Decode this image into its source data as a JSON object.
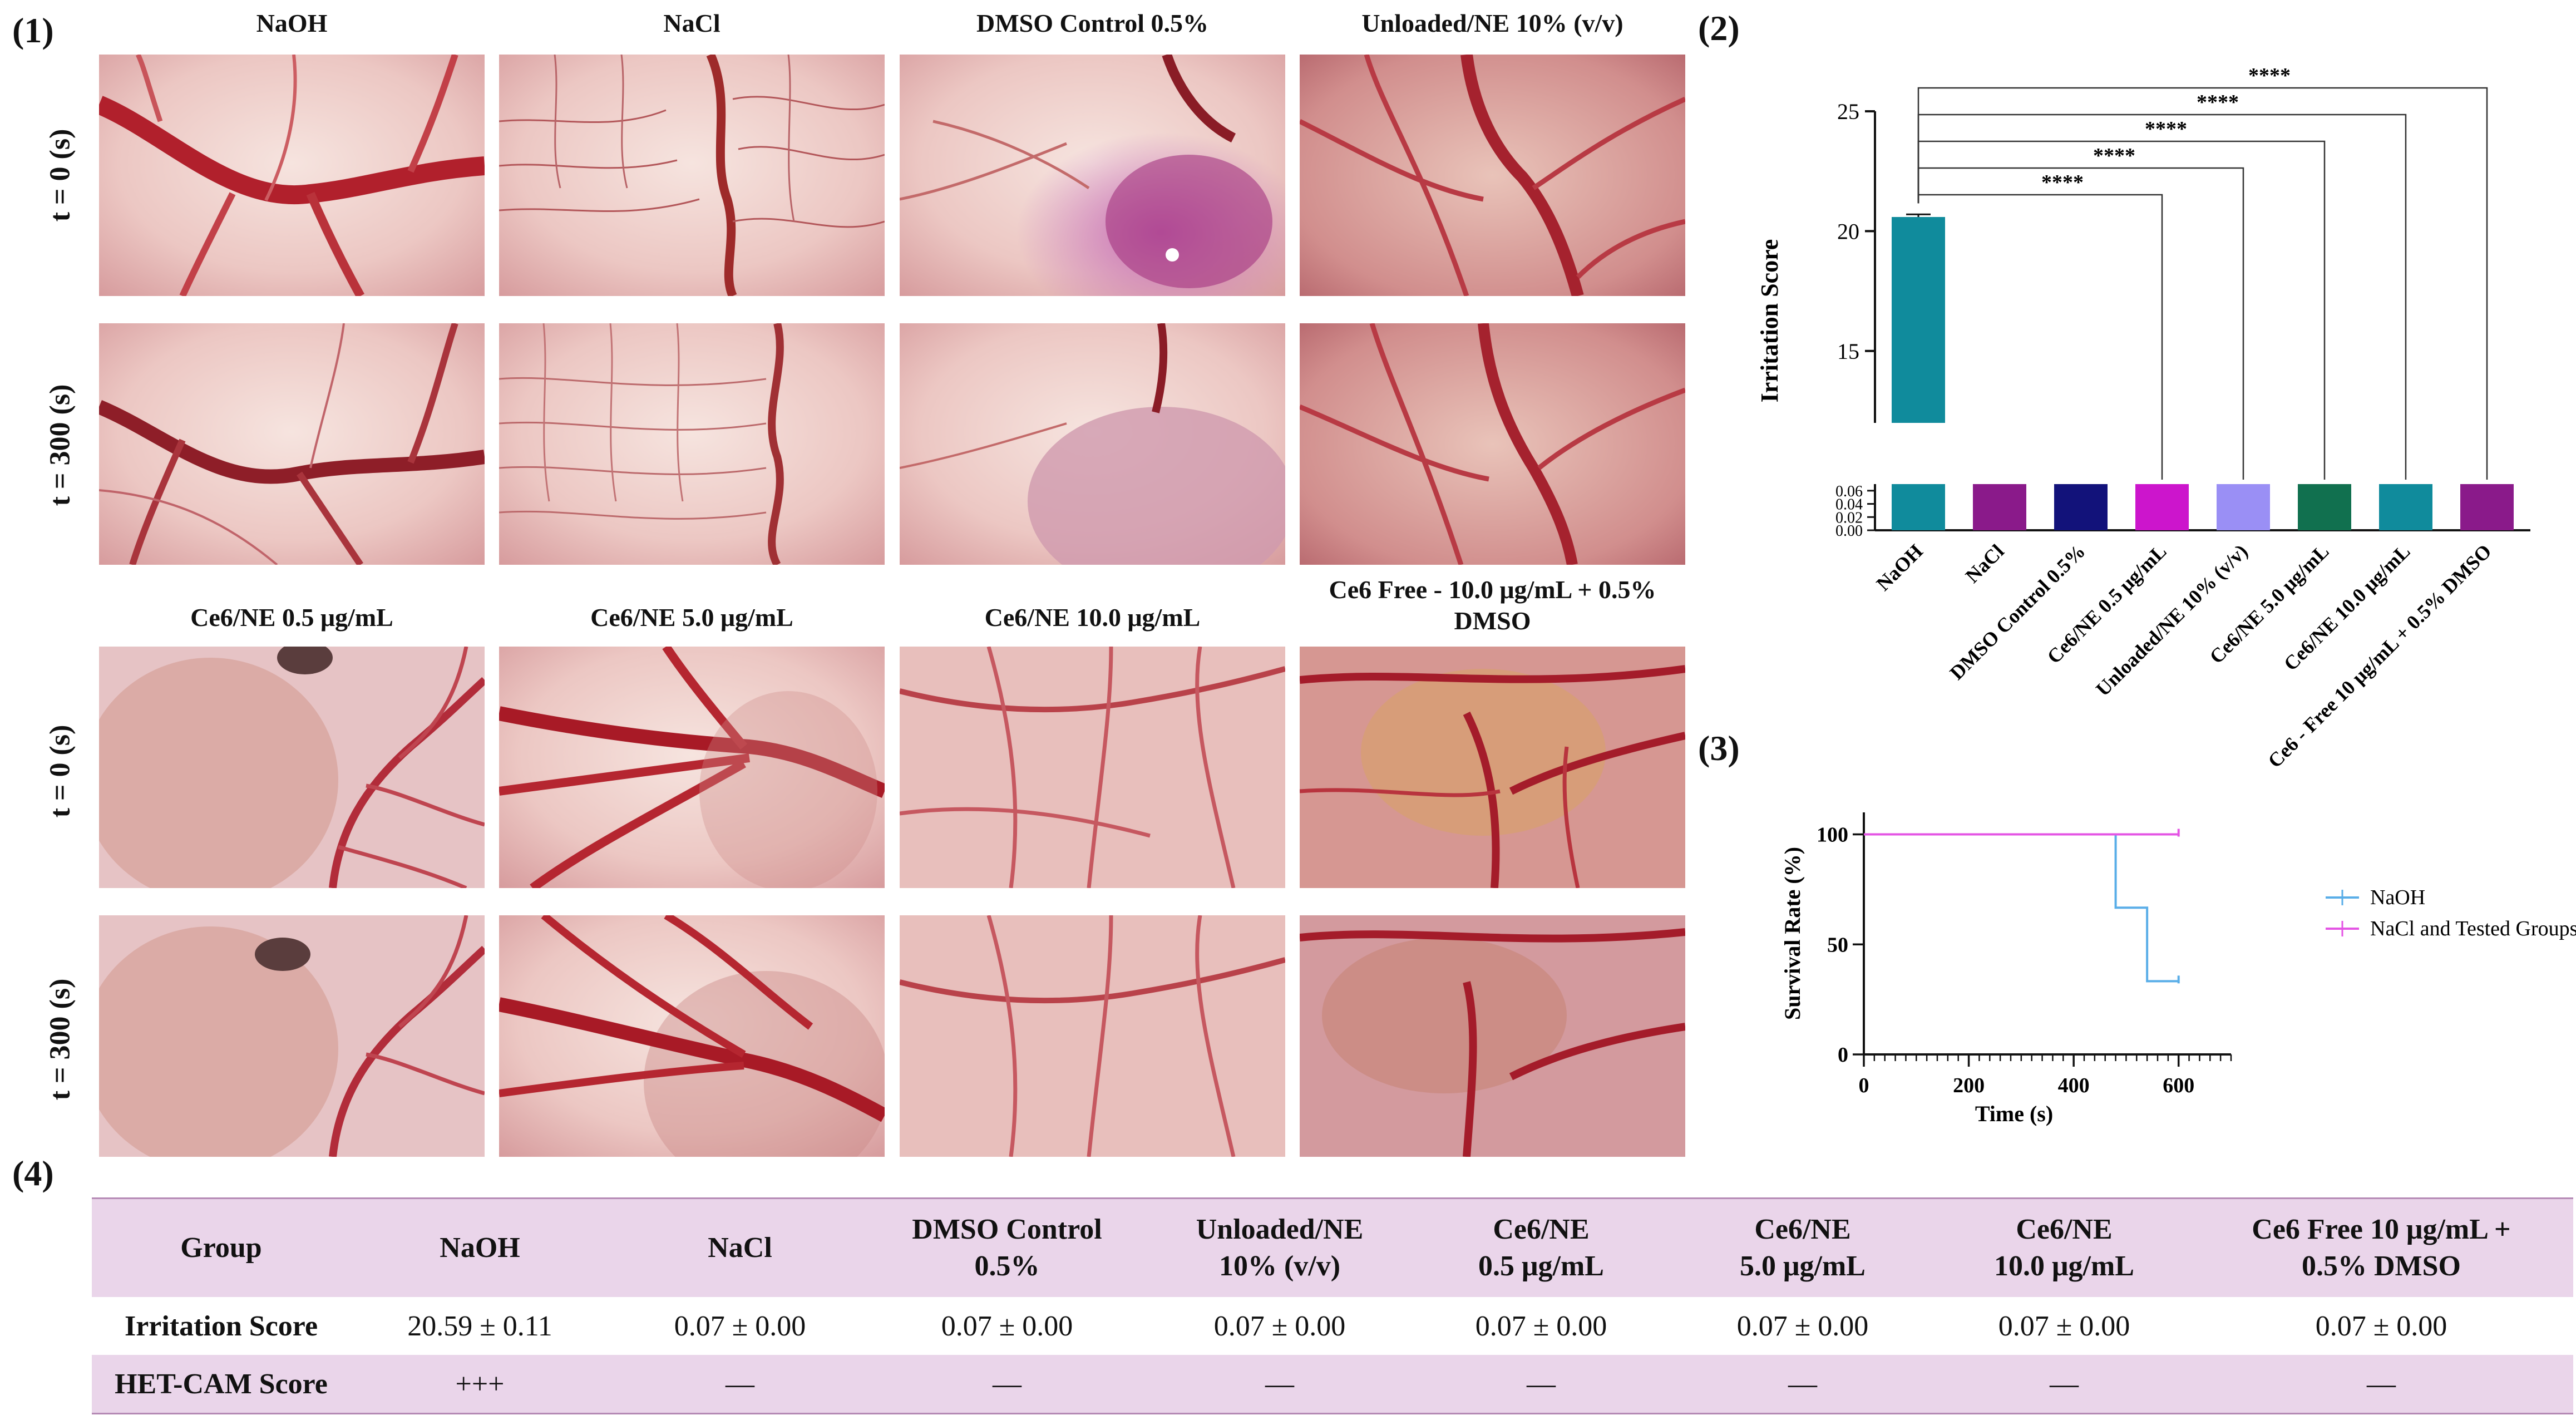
{
  "panels": {
    "p1": "(1)",
    "p2": "(2)",
    "p3": "(3)",
    "p4": "(4)"
  },
  "micrographs": {
    "rows": [
      "t = 0 (s)",
      "t = 300 (s)",
      "t = 0 (s)",
      "t = 300 (s)"
    ],
    "columns_top": [
      "NaOH",
      "NaCl",
      "DMSO Control 0.5%",
      "Unloaded/NE 10% (v/v)"
    ],
    "columns_bottom": [
      "Ce6/NE 0.5 μg/mL",
      "Ce6/NE 5.0 μg/mL",
      "Ce6/NE 10.0 μg/mL",
      "Ce6 Free - 10.0 μg/mL + 0.5% DMSO"
    ]
  },
  "chart_data": [
    {
      "type": "bar",
      "ylabel": "Irritation Score",
      "y_axis_break": true,
      "ylim_lower": [
        0,
        0.07
      ],
      "ylim_upper": [
        12,
        25
      ],
      "yticks_lower": [
        "0.00",
        "0.02",
        "0.04",
        "0.06"
      ],
      "yticks_upper": [
        "15",
        "20",
        "25"
      ],
      "categories": [
        "NaOH",
        "NaCl",
        "DMSO Control 0.5%",
        "Ce6/NE 0.5 μg/mL",
        "Unloaded/NE 10% (v/v)",
        "Ce6/NE 5.0 μg/mL",
        "Ce6/NE 10.0 μg/mL",
        "Ce6 - Free 10 μg/mL + 0.5% DMSO"
      ],
      "values": [
        20.59,
        0.07,
        0.07,
        0.07,
        0.07,
        0.07,
        0.07,
        0.07
      ],
      "errors": [
        0.11,
        0,
        0,
        0,
        0,
        0,
        0,
        0
      ],
      "colors": [
        "#108b9c",
        "#8a1a8a",
        "#12127a",
        "#cc15cc",
        "#9a8ff5",
        "#11704f",
        "#108b9c",
        "#8a1a8a"
      ],
      "significance": [
        {
          "from": "NaOH",
          "to": "Ce6/NE 0.5 μg/mL",
          "label": "****"
        },
        {
          "from": "NaOH",
          "to": "Unloaded/NE 10% (v/v)",
          "label": "****"
        },
        {
          "from": "NaOH",
          "to": "Ce6/NE 5.0 μg/mL",
          "label": "****"
        },
        {
          "from": "NaOH",
          "to": "Ce6/NE 10.0 μg/mL",
          "label": "****"
        },
        {
          "from": "NaOH",
          "to": "Ce6 - Free 10 μg/mL + 0.5% DMSO",
          "label": "****"
        }
      ]
    },
    {
      "type": "line",
      "step": true,
      "xlabel": "Time (s)",
      "ylabel": "Survival Rate (%)",
      "xlim": [
        0,
        700
      ],
      "ylim": [
        0,
        110
      ],
      "xticks": [
        0,
        200,
        400,
        600
      ],
      "yticks": [
        0,
        50,
        100
      ],
      "legend_position": "right",
      "series": [
        {
          "name": "NaOH",
          "color": "#5aaee8",
          "x": [
            0,
            480,
            480,
            540,
            540,
            600
          ],
          "y": [
            100,
            100,
            66.7,
            66.7,
            33.3,
            33.3
          ]
        },
        {
          "name": "NaCl and Tested Groups",
          "color": "#e455e4",
          "x": [
            0,
            600
          ],
          "y": [
            100,
            100
          ]
        }
      ]
    }
  ],
  "table": {
    "headers": [
      "Group",
      "NaOH",
      "NaCl",
      "DMSO Control 0.5%",
      "Unloaded/NE 10% (v/v)",
      "Ce6/NE 0.5 μg/mL",
      "Ce6/NE 5.0 μg/mL",
      "Ce6/NE 10.0 μg/mL",
      "Ce6 Free 10 μg/mL + 0.5% DMSO"
    ],
    "rows": [
      [
        "Irritation Score",
        "20.59 ± 0.11",
        "0.07 ± 0.00",
        "0.07 ± 0.00",
        "0.07 ± 0.00",
        "0.07 ± 0.00",
        "0.07 ± 0.00",
        "0.07 ± 0.00",
        "0.07 ± 0.00"
      ],
      [
        "HET-CAM Score",
        "+++",
        "—",
        "—",
        "—",
        "—",
        "—",
        "—",
        "—"
      ]
    ]
  }
}
